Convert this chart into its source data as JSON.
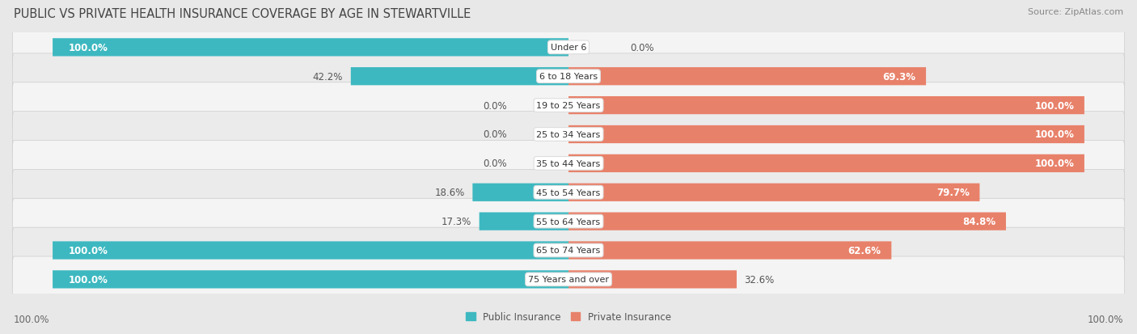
{
  "title": "PUBLIC VS PRIVATE HEALTH INSURANCE COVERAGE BY AGE IN STEWARTVILLE",
  "source": "Source: ZipAtlas.com",
  "categories": [
    "Under 6",
    "6 to 18 Years",
    "19 to 25 Years",
    "25 to 34 Years",
    "35 to 44 Years",
    "45 to 54 Years",
    "55 to 64 Years",
    "65 to 74 Years",
    "75 Years and over"
  ],
  "public_values": [
    100.0,
    42.2,
    0.0,
    0.0,
    0.0,
    18.6,
    17.3,
    100.0,
    100.0
  ],
  "private_values": [
    0.0,
    69.3,
    100.0,
    100.0,
    100.0,
    79.7,
    84.8,
    62.6,
    32.6
  ],
  "public_color": "#3DB8C0",
  "private_color": "#E8816A",
  "private_color_light": "#F2A898",
  "background_color": "#E8E8E8",
  "row_bg_even": "#F4F4F4",
  "row_bg_odd": "#EBEBEB",
  "label_white": "#FFFFFF",
  "label_dark": "#555555",
  "axis_label": "100.0%",
  "legend_public": "Public Insurance",
  "legend_private": "Private Insurance",
  "title_fontsize": 10.5,
  "source_fontsize": 8,
  "bar_label_fontsize": 8.5,
  "category_fontsize": 8,
  "legend_fontsize": 8.5
}
